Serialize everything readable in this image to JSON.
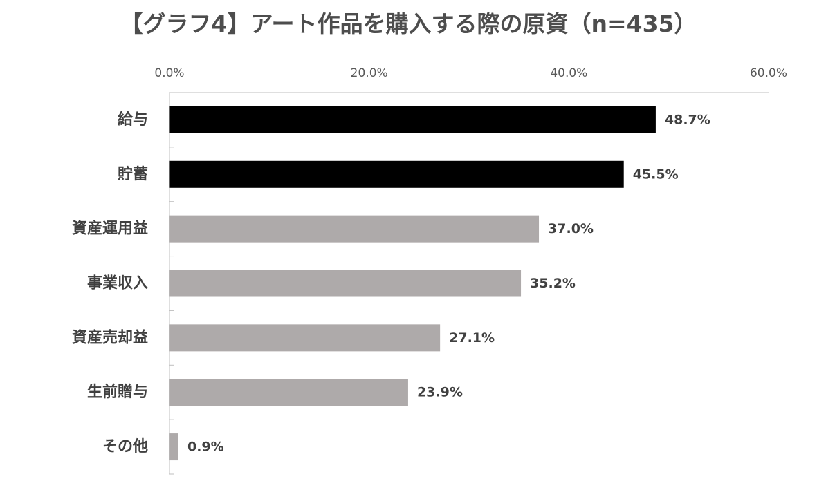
{
  "chart_data": {
    "type": "bar",
    "orientation": "horizontal",
    "title": "【グラフ4】アート作品を購入する際の原資（n=435）",
    "xlim": [
      0,
      60
    ],
    "x_ticks": [
      {
        "value": 0,
        "label": "0.0%"
      },
      {
        "value": 20,
        "label": "20.0%"
      },
      {
        "value": 40,
        "label": "40.0%"
      },
      {
        "value": 60,
        "label": "60.0%"
      }
    ],
    "axis_position": "top",
    "grid": false,
    "legend": "none",
    "highlight_color": "#000000",
    "base_color": "#aeaaaa",
    "categories": [
      "給与",
      "貯蓄",
      "資産運用益",
      "事業収入",
      "資産売却益",
      "生前贈与",
      "その他"
    ],
    "values": [
      48.7,
      45.5,
      37.0,
      35.2,
      27.1,
      23.9,
      0.9
    ],
    "value_labels": [
      "48.7%",
      "45.5%",
      "37.0%",
      "35.2%",
      "27.1%",
      "23.9%",
      "0.9%"
    ],
    "highlighted": [
      true,
      true,
      false,
      false,
      false,
      false,
      false
    ]
  }
}
